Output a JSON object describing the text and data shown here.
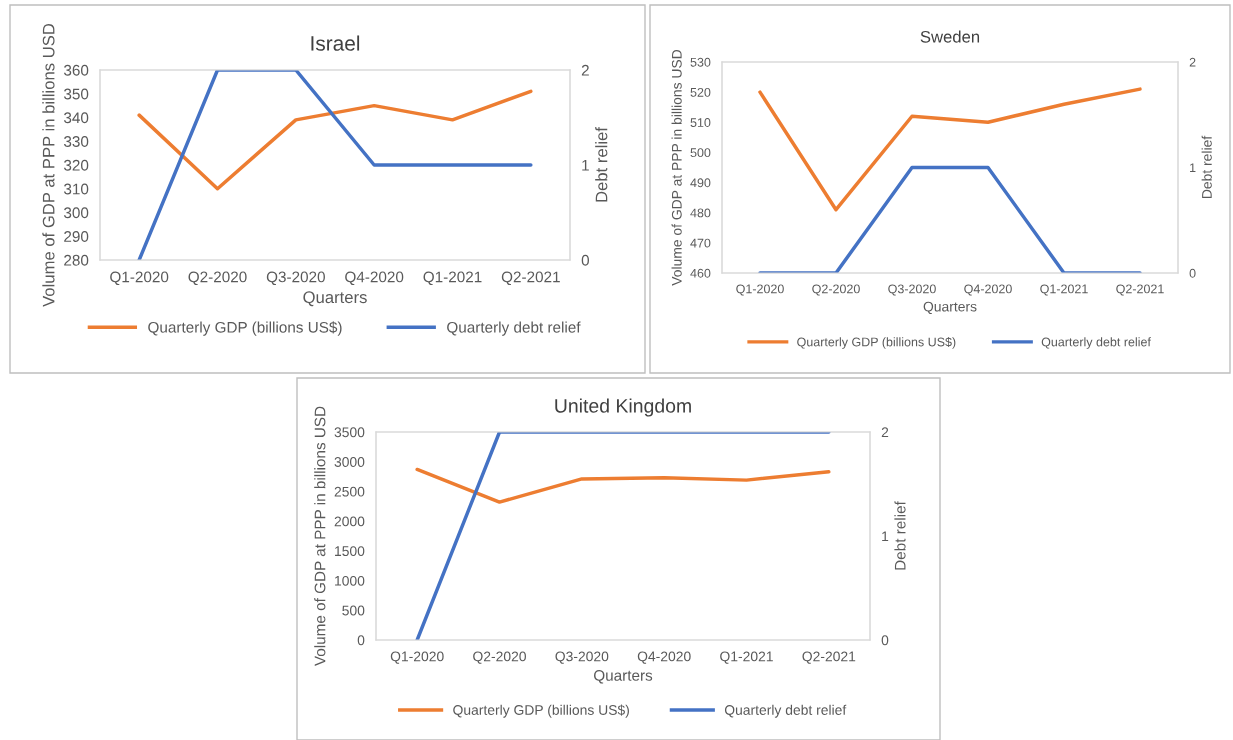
{
  "chart_data": [
    {
      "type": "line",
      "title": "Israel",
      "xlabel": "Quarters",
      "ylabel": "Volume of GDP at PPP in billions USD",
      "y2label": "Debt relief",
      "categories": [
        "Q1-2020",
        "Q2-2020",
        "Q3-2020",
        "Q4-2020",
        "Q1-2021",
        "Q2-2021"
      ],
      "series": [
        {
          "name": "Quarterly GDP (billions US$)",
          "color": "#ed7d31",
          "values": [
            341,
            310,
            339,
            345,
            339,
            351
          ]
        },
        {
          "name": "Quarterly debt relief",
          "color": "#4472c4",
          "axis": "y2",
          "values": [
            0,
            2,
            2,
            1,
            1,
            1
          ]
        }
      ],
      "ylim": [
        280,
        360
      ],
      "yticks": [
        280,
        290,
        300,
        310,
        320,
        330,
        340,
        350,
        360
      ],
      "y2lim": [
        0,
        2
      ],
      "y2ticks": [
        0,
        1,
        2
      ],
      "legend": "bottom",
      "grid": false
    },
    {
      "type": "line",
      "title": "Sweden",
      "xlabel": "Quarters",
      "ylabel": "Volume of GDP at PPP in billions USD",
      "y2label": "Debt relief",
      "categories": [
        "Q1-2020",
        "Q2-2020",
        "Q3-2020",
        "Q4-2020",
        "Q1-2021",
        "Q2-2021"
      ],
      "series": [
        {
          "name": "Quarterly GDP (billions US$)",
          "color": "#ed7d31",
          "values": [
            520,
            481,
            512,
            510,
            516,
            521
          ]
        },
        {
          "name": "Quarterly debt relief",
          "color": "#4472c4",
          "axis": "y2",
          "values": [
            0,
            0,
            1,
            1,
            0,
            0
          ]
        }
      ],
      "ylim": [
        460,
        530
      ],
      "yticks": [
        460,
        470,
        480,
        490,
        500,
        510,
        520,
        530
      ],
      "y2lim": [
        0,
        2
      ],
      "y2ticks": [
        0,
        1,
        2
      ],
      "legend": "bottom",
      "grid": false
    },
    {
      "type": "line",
      "title": "United Kingdom",
      "xlabel": "Quarters",
      "ylabel": "Volume of GDP at PPP in billions USD",
      "y2label": "Debt relief",
      "categories": [
        "Q1-2020",
        "Q2-2020",
        "Q3-2020",
        "Q4-2020",
        "Q1-2021",
        "Q2-2021"
      ],
      "series": [
        {
          "name": "Quarterly GDP (billions US$)",
          "color": "#ed7d31",
          "values": [
            2870,
            2320,
            2710,
            2730,
            2690,
            2830
          ]
        },
        {
          "name": "Quarterly debt relief",
          "color": "#4472c4",
          "axis": "y2",
          "values": [
            0,
            2,
            2,
            2,
            2,
            2
          ]
        }
      ],
      "ylim": [
        0,
        3500
      ],
      "yticks": [
        0,
        500,
        1000,
        1500,
        2000,
        2500,
        3000,
        3500
      ],
      "y2lim": [
        0,
        2
      ],
      "y2ticks": [
        0,
        1,
        2
      ],
      "legend": "bottom",
      "grid": false
    }
  ]
}
